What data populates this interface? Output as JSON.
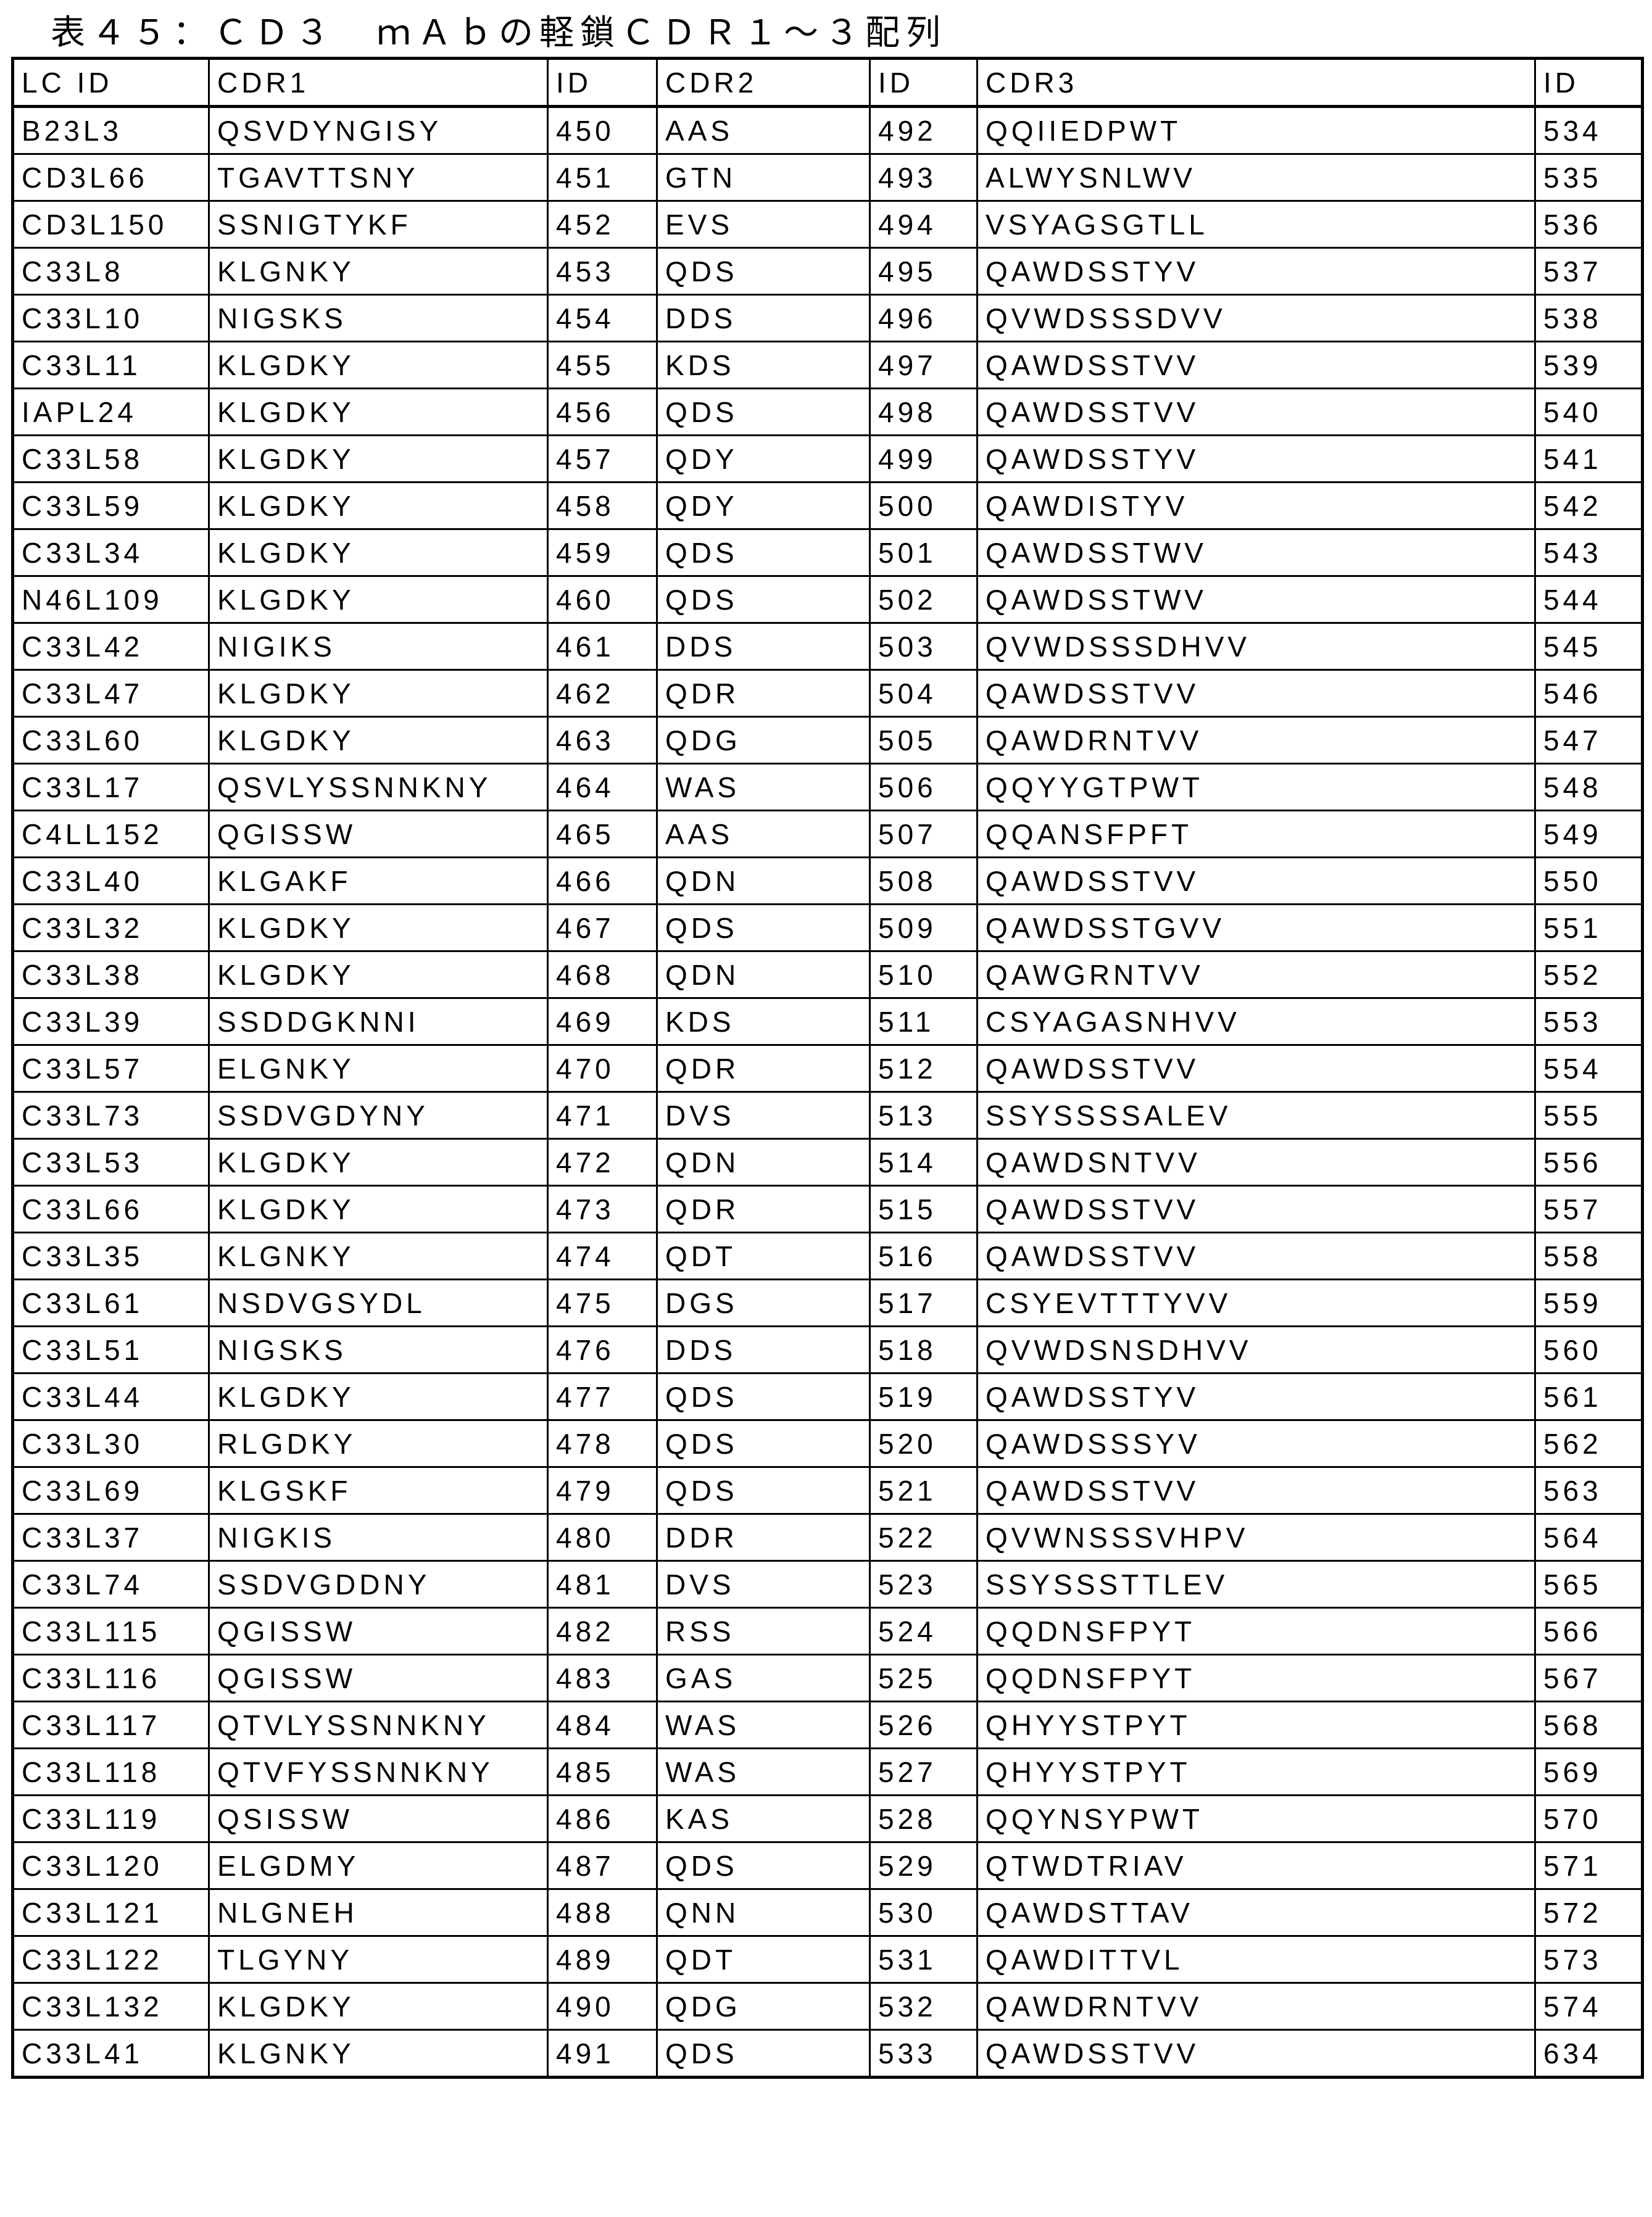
{
  "title": "表４５：ＣＤ３　ｍＡｂの軽鎖ＣＤＲ１～３配列",
  "table": {
    "headers": [
      "LC ID",
      "CDR1",
      "ID",
      "CDR2",
      "ID",
      "CDR3",
      "ID"
    ],
    "rows": [
      [
        "B23L3",
        "QSVDYNGISY",
        "450",
        "AAS",
        "492",
        "QQIIEDPWT",
        "534"
      ],
      [
        "CD3L66",
        "TGAVTTSNY",
        "451",
        "GTN",
        "493",
        "ALWYSNLWV",
        "535"
      ],
      [
        "CD3L150",
        "SSNIGTYKF",
        "452",
        "EVS",
        "494",
        "VSYAGSGTLL",
        "536"
      ],
      [
        "C33L8",
        "KLGNKY",
        "453",
        "QDS",
        "495",
        "QAWDSSTYV",
        "537"
      ],
      [
        "C33L10",
        "NIGSKS",
        "454",
        "DDS",
        "496",
        "QVWDSSSDVV",
        "538"
      ],
      [
        "C33L11",
        "KLGDKY",
        "455",
        "KDS",
        "497",
        "QAWDSSTVV",
        "539"
      ],
      [
        "IAPL24",
        "KLGDKY",
        "456",
        "QDS",
        "498",
        "QAWDSSTVV",
        "540"
      ],
      [
        "C33L58",
        "KLGDKY",
        "457",
        "QDY",
        "499",
        "QAWDSSTYV",
        "541"
      ],
      [
        "C33L59",
        "KLGDKY",
        "458",
        "QDY",
        "500",
        "QAWDISTYV",
        "542"
      ],
      [
        "C33L34",
        "KLGDKY",
        "459",
        "QDS",
        "501",
        "QAWDSSTWV",
        "543"
      ],
      [
        "N46L109",
        "KLGDKY",
        "460",
        "QDS",
        "502",
        "QAWDSSTWV",
        "544"
      ],
      [
        "C33L42",
        "NIGIKS",
        "461",
        "DDS",
        "503",
        "QVWDSSSDHVV",
        "545"
      ],
      [
        "C33L47",
        "KLGDKY",
        "462",
        "QDR",
        "504",
        "QAWDSSTVV",
        "546"
      ],
      [
        "C33L60",
        "KLGDKY",
        "463",
        "QDG",
        "505",
        "QAWDRNTVV",
        "547"
      ],
      [
        "C33L17",
        "QSVLYSSNNKNY",
        "464",
        "WAS",
        "506",
        "QQYYGTPWT",
        "548"
      ],
      [
        "C4LL152",
        "QGISSW",
        "465",
        "AAS",
        "507",
        "QQANSFPFT",
        "549"
      ],
      [
        "C33L40",
        "KLGAKF",
        "466",
        "QDN",
        "508",
        "QAWDSSTVV",
        "550"
      ],
      [
        "C33L32",
        "KLGDKY",
        "467",
        "QDS",
        "509",
        "QAWDSSTGVV",
        "551"
      ],
      [
        "C33L38",
        "KLGDKY",
        "468",
        "QDN",
        "510",
        "QAWGRNTVV",
        "552"
      ],
      [
        "C33L39",
        "SSDDGKNNI",
        "469",
        "KDS",
        "511",
        "CSYAGASNHVV",
        "553"
      ],
      [
        "C33L57",
        "ELGNKY",
        "470",
        "QDR",
        "512",
        "QAWDSSTVV",
        "554"
      ],
      [
        "C33L73",
        "SSDVGDYNY",
        "471",
        "DVS",
        "513",
        "SSYSSSSALEV",
        "555"
      ],
      [
        "C33L53",
        "KLGDKY",
        "472",
        "QDN",
        "514",
        "QAWDSNTVV",
        "556"
      ],
      [
        "C33L66",
        "KLGDKY",
        "473",
        "QDR",
        "515",
        "QAWDSSTVV",
        "557"
      ],
      [
        "C33L35",
        "KLGNKY",
        "474",
        "QDT",
        "516",
        "QAWDSSTVV",
        "558"
      ],
      [
        "C33L61",
        "NSDVGSYDL",
        "475",
        "DGS",
        "517",
        "CSYEVTTTYVV",
        "559"
      ],
      [
        "C33L51",
        "NIGSKS",
        "476",
        "DDS",
        "518",
        "QVWDSNSDHVV",
        "560"
      ],
      [
        "C33L44",
        "KLGDKY",
        "477",
        "QDS",
        "519",
        "QAWDSSTYV",
        "561"
      ],
      [
        "C33L30",
        "RLGDKY",
        "478",
        "QDS",
        "520",
        "QAWDSSSYV",
        "562"
      ],
      [
        "C33L69",
        "KLGSKF",
        "479",
        "QDS",
        "521",
        "QAWDSSTVV",
        "563"
      ],
      [
        "C33L37",
        "NIGKIS",
        "480",
        "DDR",
        "522",
        "QVWNSSSVHPV",
        "564"
      ],
      [
        "C33L74",
        "SSDVGDDNY",
        "481",
        "DVS",
        "523",
        "SSYSSSTTLEV",
        "565"
      ],
      [
        "C33L115",
        "QGISSW",
        "482",
        "RSS",
        "524",
        "QQDNSFPYT",
        "566"
      ],
      [
        "C33L116",
        "QGISSW",
        "483",
        "GAS",
        "525",
        "QQDNSFPYT",
        "567"
      ],
      [
        "C33L117",
        "QTVLYSSNNKNY",
        "484",
        "WAS",
        "526",
        "QHYYSTPYT",
        "568"
      ],
      [
        "C33L118",
        "QTVFYSSNNKNY",
        "485",
        "WAS",
        "527",
        "QHYYSTPYT",
        "569"
      ],
      [
        "C33L119",
        "QSISSW",
        "486",
        "KAS",
        "528",
        "QQYNSYPWT",
        "570"
      ],
      [
        "C33L120",
        "ELGDMY",
        "487",
        "QDS",
        "529",
        "QTWDTRIAV",
        "571"
      ],
      [
        "C33L121",
        "NLGNEH",
        "488",
        "QNN",
        "530",
        "QAWDSTTAV",
        "572"
      ],
      [
        "C33L122",
        "TLGYNY",
        "489",
        "QDT",
        "531",
        "QAWDITTVL",
        "573"
      ],
      [
        "C33L132",
        "KLGDKY",
        "490",
        "QDG",
        "532",
        "QAWDRNTVV",
        "574"
      ],
      [
        "C33L41",
        "KLGNKY",
        "491",
        "QDS",
        "533",
        "QAWDSSTVV",
        "634"
      ]
    ]
  }
}
